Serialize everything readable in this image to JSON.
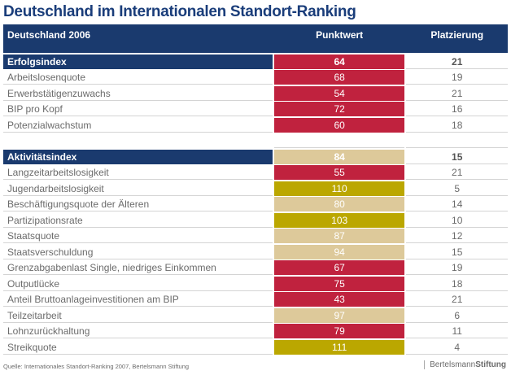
{
  "title": "Deutschland im Internationalen Standort-Ranking",
  "header": {
    "col1": "Deutschland 2006",
    "col2": "Punktwert",
    "col3": "Platzierung"
  },
  "sections": [
    {
      "label": "Erfolgsindex",
      "value": "64",
      "rank": "21",
      "color": "red",
      "rows": [
        {
          "label": "Arbeitslosenquote",
          "value": "68",
          "rank": "19",
          "color": "red"
        },
        {
          "label": "Erwerbstätigenzuwachs",
          "value": "54",
          "rank": "21",
          "color": "red"
        },
        {
          "label": "BIP pro Kopf",
          "value": "72",
          "rank": "16",
          "color": "red"
        },
        {
          "label": "Potenzialwachstum",
          "value": "60",
          "rank": "18",
          "color": "red"
        }
      ]
    },
    {
      "label": "Aktivitätsindex",
      "value": "84",
      "rank": "15",
      "color": "beige",
      "rows": [
        {
          "label": "Langzeitarbeitslosigkeit",
          "value": "55",
          "rank": "21",
          "color": "red"
        },
        {
          "label": "Jugendarbeitslosigkeit",
          "value": "110",
          "rank": "5",
          "color": "olive"
        },
        {
          "label": "Beschäftigungsquote der Älteren",
          "value": "80",
          "rank": "14",
          "color": "beige"
        },
        {
          "label": "Partizipationsrate",
          "value": "103",
          "rank": "10",
          "color": "olive"
        },
        {
          "label": "Staatsquote",
          "value": "87",
          "rank": "12",
          "color": "beige"
        },
        {
          "label": "Staatsverschuldung",
          "value": "94",
          "rank": "15",
          "color": "beige"
        },
        {
          "label": "Grenzabgabenlast Single, niedriges Einkommen",
          "value": "67",
          "rank": "19",
          "color": "red"
        },
        {
          "label": "Outputlücke",
          "value": "75",
          "rank": "18",
          "color": "red"
        },
        {
          "label": "Anteil Bruttoanlageinvestitionen am BIP",
          "value": "43",
          "rank": "21",
          "color": "red"
        },
        {
          "label": "Teilzeitarbeit",
          "value": "97",
          "rank": "6",
          "color": "beige"
        },
        {
          "label": "Lohnzurückhaltung",
          "value": "79",
          "rank": "11",
          "color": "red"
        },
        {
          "label": "Streikquote",
          "value": "111",
          "rank": "4",
          "color": "olive"
        }
      ]
    }
  ],
  "colors": {
    "red": "#c0223e",
    "beige": "#ddc99a",
    "olive": "#bba700",
    "navy": "#1a3a6e"
  },
  "footer": {
    "source": "Quelle:  Internationales Standort-Ranking 2007,  Bertelsmann Stiftung"
  },
  "logo": {
    "part1": "Bertelsmann",
    "part2": "Stiftung"
  }
}
